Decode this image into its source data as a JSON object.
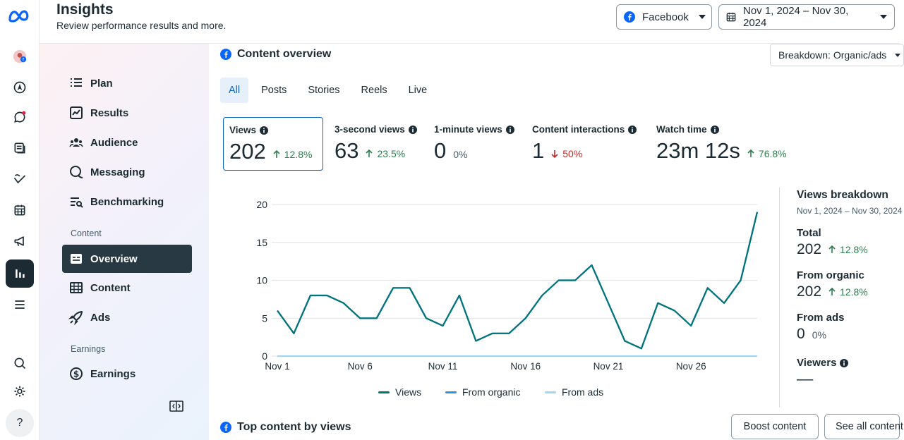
{
  "header": {
    "title": "Insights",
    "subtitle": "Review performance results and more.",
    "platform_label": "Facebook",
    "date_range": "Nov 1, 2024 – Nov 30, 2024"
  },
  "sidebar": {
    "items": [
      {
        "label": "Plan",
        "icon": "plan-icon"
      },
      {
        "label": "Results",
        "icon": "results-icon"
      },
      {
        "label": "Audience",
        "icon": "audience-icon"
      },
      {
        "label": "Messaging",
        "icon": "messaging-icon"
      },
      {
        "label": "Benchmarking",
        "icon": "benchmarking-icon"
      }
    ],
    "content_section": "Content",
    "content_items": [
      {
        "label": "Overview",
        "icon": "overview-icon",
        "active": true
      },
      {
        "label": "Content",
        "icon": "table-icon"
      },
      {
        "label": "Ads",
        "icon": "rocket-icon"
      }
    ],
    "earnings_section": "Earnings",
    "earnings_items": [
      {
        "label": "Earnings",
        "icon": "dollar-icon"
      }
    ]
  },
  "rail_icons": [
    "meta-logo",
    "profile-avatar",
    "compass-icon",
    "chat-icon",
    "posts-icon",
    "planner-icon",
    "calendar-icon",
    "megaphone-icon",
    "insights-icon",
    "menu-icon",
    "search-icon",
    "gear-icon",
    "help-icon"
  ],
  "main": {
    "section_title": "Content overview",
    "breakdown": "Breakdown: Organic/ads",
    "tabs": [
      "All",
      "Posts",
      "Stories",
      "Reels",
      "Live"
    ],
    "metrics": [
      {
        "label": "Views",
        "value": "202",
        "change": "12.8%",
        "direction": "up"
      },
      {
        "label": "3-second views",
        "value": "63",
        "change": "23.5%",
        "direction": "up"
      },
      {
        "label": "1-minute views",
        "value": "0",
        "change": "0%",
        "direction": "flat"
      },
      {
        "label": "Content interactions",
        "value": "1",
        "change": "50%",
        "direction": "down"
      },
      {
        "label": "Watch time",
        "value": "23m 12s",
        "change": "76.8%",
        "direction": "up"
      }
    ],
    "legend": [
      "Views",
      "From organic",
      "From ads"
    ],
    "views_breakdown": {
      "title": "Views breakdown",
      "date": "Nov 1, 2024 – Nov 30, 2024",
      "total_label": "Total",
      "total_value": "202",
      "total_change": "12.8%",
      "organic_label": "From organic",
      "organic_value": "202",
      "organic_change": "12.8%",
      "ads_label": "From ads",
      "ads_value": "0",
      "ads_change": "0%",
      "viewers_label": "Viewers",
      "viewers_value": "––"
    },
    "top_content_title": "Top content by views",
    "boost_label": "Boost content",
    "see_all_label": "See all content"
  },
  "colors": {
    "views": "#00747a",
    "from_organic": "#3a8fd9",
    "from_ads": "#9fd8f5",
    "accent": "#0a66c2"
  },
  "chart_data": {
    "type": "line",
    "x_tick_labels": [
      "Nov 1",
      "Nov 6",
      "Nov 11",
      "Nov 16",
      "Nov 21",
      "Nov 26"
    ],
    "x": [
      "Nov 1",
      "Nov 2",
      "Nov 3",
      "Nov 4",
      "Nov 5",
      "Nov 6",
      "Nov 7",
      "Nov 8",
      "Nov 9",
      "Nov 10",
      "Nov 11",
      "Nov 12",
      "Nov 13",
      "Nov 14",
      "Nov 15",
      "Nov 16",
      "Nov 17",
      "Nov 18",
      "Nov 19",
      "Nov 20",
      "Nov 21",
      "Nov 22",
      "Nov 23",
      "Nov 24",
      "Nov 25",
      "Nov 26",
      "Nov 27",
      "Nov 28",
      "Nov 29",
      "Nov 30"
    ],
    "series": [
      {
        "name": "Views",
        "values": [
          6,
          3,
          8,
          8,
          7,
          5,
          5,
          9,
          9,
          5,
          4,
          8,
          2,
          3,
          3,
          5,
          8,
          10,
          10,
          12,
          7,
          2,
          1,
          7,
          6,
          4,
          9,
          7,
          10,
          19
        ]
      },
      {
        "name": "From organic",
        "values": [
          6,
          3,
          8,
          8,
          7,
          5,
          5,
          9,
          9,
          5,
          4,
          8,
          2,
          3,
          3,
          5,
          8,
          10,
          10,
          12,
          7,
          2,
          1,
          7,
          6,
          4,
          9,
          7,
          10,
          19
        ]
      },
      {
        "name": "From ads",
        "values": [
          0,
          0,
          0,
          0,
          0,
          0,
          0,
          0,
          0,
          0,
          0,
          0,
          0,
          0,
          0,
          0,
          0,
          0,
          0,
          0,
          0,
          0,
          0,
          0,
          0,
          0,
          0,
          0,
          0,
          0
        ]
      }
    ],
    "y_ticks": [
      0,
      5,
      10,
      15,
      20
    ],
    "ylim": [
      0,
      20
    ],
    "grid": true,
    "legend_position": "bottom"
  }
}
